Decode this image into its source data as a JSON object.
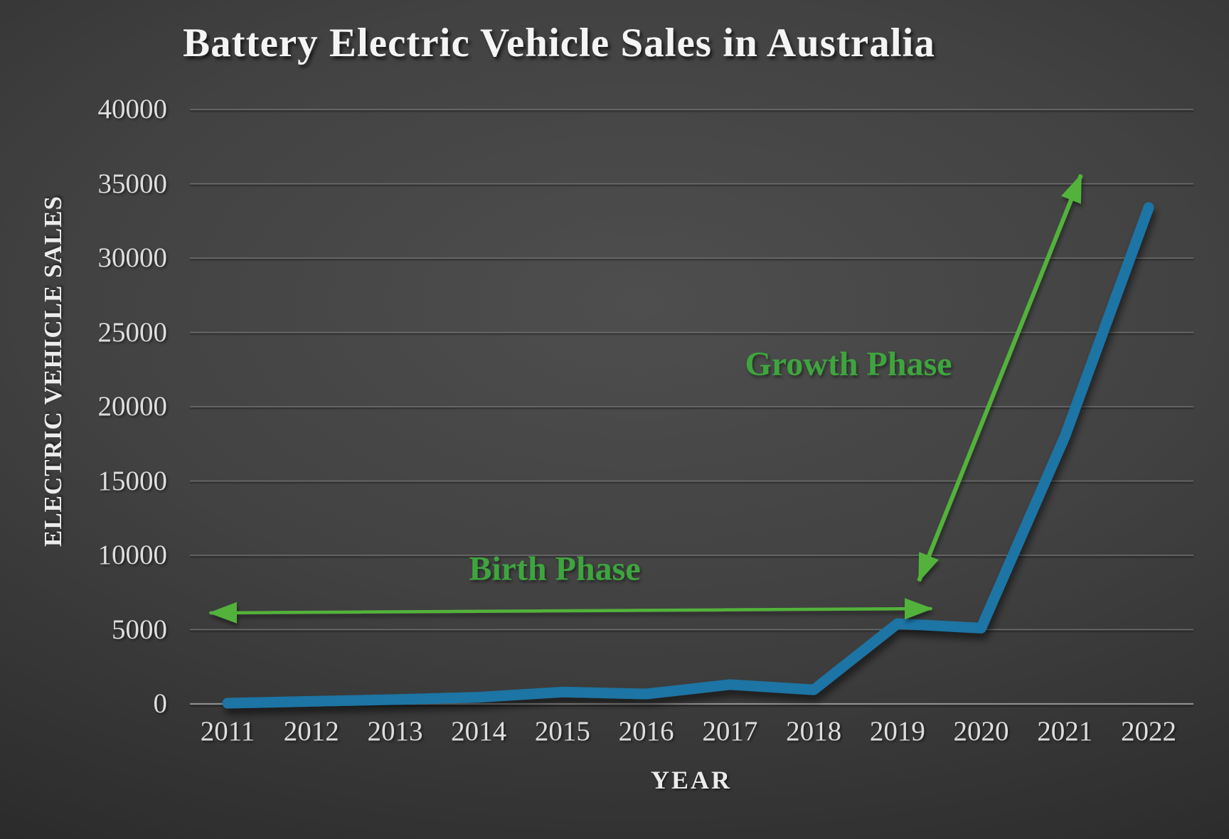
{
  "title": "Battery Electric Vehicle Sales in Australia",
  "x_axis_title": "YEAR",
  "y_axis_title": "ELECTRIC VEHICLE SALES",
  "annotations": {
    "birth_phase_label": "Birth Phase",
    "growth_phase_label": "Growth Phase"
  },
  "colors": {
    "line_blue": "#1f74a4",
    "annotation_green_text": "#3ea53e",
    "annotation_green_arrow": "#52b23a",
    "gridline_gray": "#6e6e6e",
    "axis_zero_line": "#8e8e8e",
    "text_light": "#dedede"
  },
  "chart_data": {
    "type": "line",
    "title": "Battery Electric Vehicle Sales in Australia",
    "xlabel": "YEAR",
    "ylabel": "ELECTRIC VEHICLE SALES",
    "x": [
      "2011",
      "2012",
      "2013",
      "2014",
      "2015",
      "2016",
      "2017",
      "2018",
      "2019",
      "2020",
      "2021",
      "2022"
    ],
    "series": [
      {
        "name": "Battery electric vehicle sales",
        "values": [
          49,
          170,
          290,
          450,
          800,
          670,
          1300,
          950,
          5400,
          5100,
          18000,
          33400
        ]
      }
    ],
    "ylim": [
      0,
      40000
    ],
    "ytick_step": 5000,
    "y_ticks": [
      0,
      5000,
      10000,
      15000,
      20000,
      25000,
      30000,
      35000,
      40000
    ],
    "grid": true,
    "legend": false,
    "annotations": [
      {
        "text": "Birth Phase",
        "type": "double-arrow",
        "span_years": [
          "2011",
          "2019"
        ]
      },
      {
        "text": "Growth Phase",
        "type": "double-arrow",
        "span_values": [
          8500,
          35000
        ]
      }
    ]
  }
}
